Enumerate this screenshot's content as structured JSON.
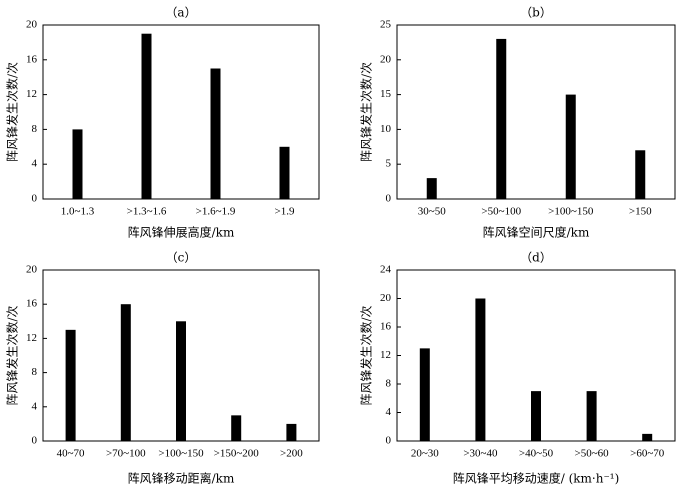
{
  "chart_data": [
    {
      "type": "bar",
      "title": "（a）",
      "categories": [
        "1.0~1.3",
        ">1.3~1.6",
        ">1.6~1.9",
        ">1.9"
      ],
      "values": [
        8,
        19,
        15,
        6
      ],
      "xlabel": "阵风锋伸展高度/km",
      "ylabel": "阵风锋发生次数/次",
      "ylim": [
        0,
        20
      ],
      "yticks": [
        0,
        4,
        8,
        12,
        16,
        20
      ],
      "grid": false
    },
    {
      "type": "bar",
      "title": "（b）",
      "categories": [
        "30~50",
        ">50~100",
        ">100~150",
        ">150"
      ],
      "values": [
        3,
        23,
        15,
        7
      ],
      "xlabel": "阵风锋空间尺度/km",
      "ylabel": "阵风锋发生次数/次",
      "ylim": [
        0,
        25
      ],
      "yticks": [
        0,
        5,
        10,
        15,
        20,
        25
      ],
      "grid": false
    },
    {
      "type": "bar",
      "title": "（c）",
      "categories": [
        "40~70",
        ">70~100",
        ">100~150",
        ">150~200",
        ">200"
      ],
      "values": [
        13,
        16,
        14,
        3,
        2
      ],
      "xlabel": "阵风锋移动距离/km",
      "ylabel": "阵风锋发生次数/次",
      "ylim": [
        0,
        20
      ],
      "yticks": [
        0,
        4,
        8,
        12,
        16,
        20
      ],
      "grid": false
    },
    {
      "type": "bar",
      "title": "（d）",
      "categories": [
        "20~30",
        ">30~40",
        ">40~50",
        ">50~60",
        ">60~70"
      ],
      "values": [
        13,
        20,
        7,
        7,
        1
      ],
      "xlabel": "阵风锋平均移动速度/ (km·h⁻¹)",
      "ylabel": "阵风锋发生次数/次",
      "ylim": [
        0,
        24
      ],
      "yticks": [
        0,
        4,
        8,
        12,
        16,
        20,
        24
      ],
      "grid": false
    }
  ]
}
